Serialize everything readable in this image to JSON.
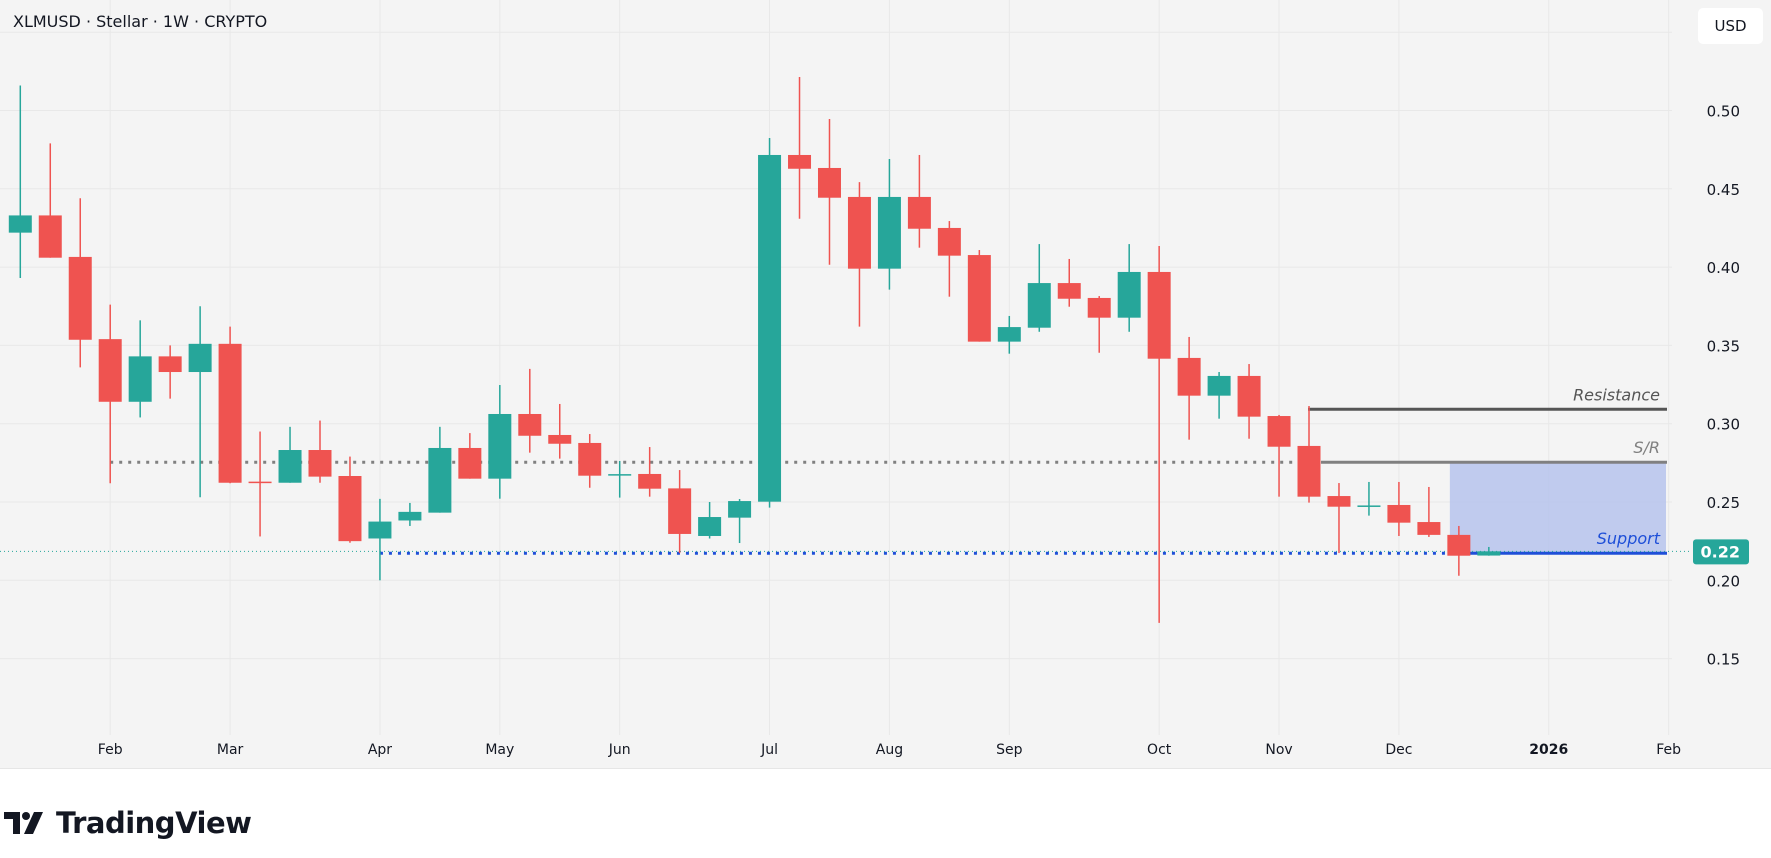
{
  "header": {
    "title": "XLMUSD · Stellar · 1W · CRYPTO",
    "currency_button": "USD"
  },
  "footer": {
    "logo_text": "TradingView"
  },
  "colors": {
    "up": "#26a69a",
    "down": "#ef5350",
    "support": "#1e4fd8",
    "resistance": "#555555",
    "sr": "#808080",
    "zone": "#b6c3ec"
  },
  "chart_data": {
    "type": "candlestick",
    "symbol": "XLMUSD",
    "timeframe": "1W",
    "ylim": [
      0.11,
      0.56
    ],
    "y_ticks": [
      "0.15",
      "0.20",
      "0.25",
      "0.30",
      "0.35",
      "0.40",
      "0.45",
      "0.50"
    ],
    "x_ticks": [
      {
        "label": "Feb",
        "bar": 3
      },
      {
        "label": "Mar",
        "bar": 7
      },
      {
        "label": "Apr",
        "bar": 12
      },
      {
        "label": "May",
        "bar": 16
      },
      {
        "label": "Jun",
        "bar": 20
      },
      {
        "label": "Jul",
        "bar": 25
      },
      {
        "label": "Aug",
        "bar": 29
      },
      {
        "label": "Sep",
        "bar": 33
      },
      {
        "label": "Oct",
        "bar": 38
      },
      {
        "label": "Nov",
        "bar": 42
      },
      {
        "label": "Dec",
        "bar": 46
      },
      {
        "label": "2026",
        "bar": 51
      },
      {
        "label": "Feb",
        "bar": 55
      }
    ],
    "ohlc": [
      [
        0.422,
        0.516,
        0.393,
        0.433
      ],
      [
        0.433,
        0.479,
        0.406,
        0.406
      ],
      [
        0.4065,
        0.444,
        0.336,
        0.3536
      ],
      [
        0.354,
        0.376,
        0.262,
        0.314
      ],
      [
        0.314,
        0.366,
        0.304,
        0.343
      ],
      [
        0.343,
        0.35,
        0.316,
        0.333
      ],
      [
        0.333,
        0.375,
        0.253,
        0.351
      ],
      [
        0.351,
        0.362,
        0.262,
        0.2623
      ],
      [
        0.263,
        0.295,
        0.228,
        0.2625
      ],
      [
        0.2623,
        0.298,
        0.2623,
        0.2832
      ],
      [
        0.2832,
        0.302,
        0.2623,
        0.2662
      ],
      [
        0.2666,
        0.279,
        0.224,
        0.225
      ],
      [
        0.2267,
        0.252,
        0.2,
        0.2375
      ],
      [
        0.2382,
        0.2494,
        0.2347,
        0.2437
      ],
      [
        0.2432,
        0.298,
        0.2432,
        0.2845
      ],
      [
        0.2845,
        0.294,
        0.2649,
        0.2649
      ],
      [
        0.2649,
        0.3247,
        0.2521,
        0.3062
      ],
      [
        0.3062,
        0.335,
        0.2815,
        0.2923
      ],
      [
        0.2928,
        0.3126,
        0.2777,
        0.2872
      ],
      [
        0.2877,
        0.2934,
        0.2591,
        0.2668
      ],
      [
        0.2675,
        0.2762,
        0.2528,
        0.2678
      ],
      [
        0.2679,
        0.2851,
        0.2534,
        0.2585
      ],
      [
        0.2587,
        0.2704,
        0.2174,
        0.2296
      ],
      [
        0.2283,
        0.25,
        0.2267,
        0.2404
      ],
      [
        0.24,
        0.2519,
        0.2238,
        0.2506
      ],
      [
        0.2502,
        0.4824,
        0.2464,
        0.4716
      ],
      [
        0.4716,
        0.5214,
        0.4309,
        0.4628
      ],
      [
        0.4633,
        0.4946,
        0.4015,
        0.4443
      ],
      [
        0.4448,
        0.4543,
        0.362,
        0.399
      ],
      [
        0.399,
        0.469,
        0.3856,
        0.4448
      ],
      [
        0.4448,
        0.4716,
        0.4124,
        0.4245
      ],
      [
        0.425,
        0.4294,
        0.3811,
        0.4073
      ],
      [
        0.4077,
        0.4109,
        0.3524,
        0.3524
      ],
      [
        0.3524,
        0.3688,
        0.3447,
        0.3617
      ],
      [
        0.3613,
        0.4147,
        0.3587,
        0.3898
      ],
      [
        0.3898,
        0.4052,
        0.3747,
        0.3798
      ],
      [
        0.3803,
        0.3815,
        0.3453,
        0.3677
      ],
      [
        0.3677,
        0.4147,
        0.3587,
        0.3969
      ],
      [
        0.3969,
        0.4135,
        0.1728,
        0.3415
      ],
      [
        0.342,
        0.3554,
        0.2898,
        0.3179
      ],
      [
        0.3179,
        0.333,
        0.3032,
        0.3305
      ],
      [
        0.3305,
        0.3381,
        0.2904,
        0.3045
      ],
      [
        0.3049,
        0.3056,
        0.2534,
        0.2853
      ],
      [
        0.2858,
        0.3113,
        0.2496,
        0.2534
      ],
      [
        0.2538,
        0.2621,
        0.2174,
        0.247
      ],
      [
        0.2474,
        0.2628,
        0.2413,
        0.2478
      ],
      [
        0.2481,
        0.2628,
        0.2283,
        0.2368
      ],
      [
        0.2372,
        0.2596,
        0.2277,
        0.229
      ],
      [
        0.229,
        0.2347,
        0.2029,
        0.2157
      ],
      [
        0.2158,
        0.2213,
        0.2157,
        0.2185
      ]
    ],
    "last_price_label": "0.22",
    "annotations": [
      {
        "label": "Resistance",
        "price": 0.3092,
        "start_bar": 43
      },
      {
        "label": "S/R",
        "price": 0.2754,
        "start_bar": 3,
        "solid_from_bar": 44
      },
      {
        "label": "Support",
        "price": 0.2173,
        "start_bar": 12,
        "solid_from_bar": 48
      }
    ],
    "zone": {
      "top": 0.2754,
      "bottom": 0.2173,
      "start_bar": 48
    }
  }
}
